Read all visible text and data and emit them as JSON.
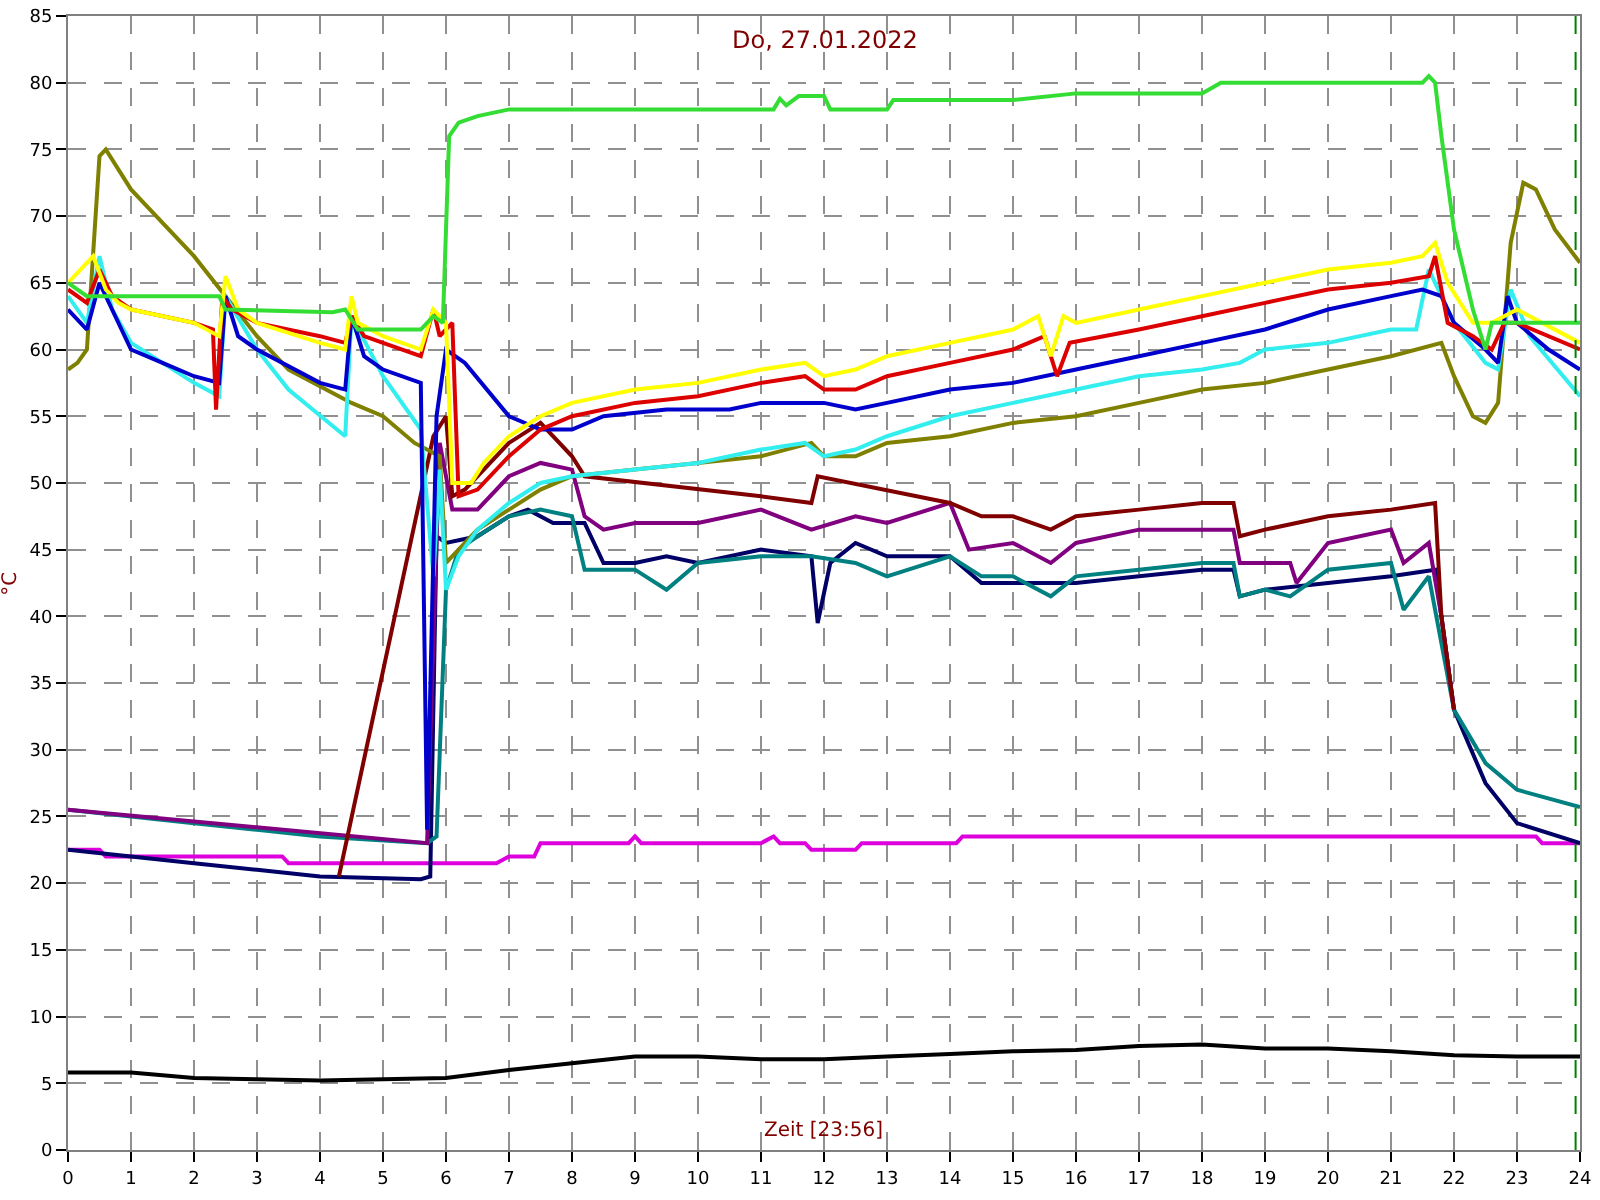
{
  "chart_data": {
    "type": "line",
    "title": "Do, 27.01.2022",
    "xlabel": "Zeit [23:56]",
    "ylabel": "°C",
    "xlim": [
      0,
      24
    ],
    "xticks": [
      0,
      1,
      2,
      3,
      4,
      5,
      6,
      7,
      8,
      9,
      10,
      11,
      12,
      13,
      14,
      15,
      16,
      17,
      18,
      19,
      20,
      21,
      22,
      23,
      24
    ],
    "ylim": [
      0,
      85
    ],
    "yticks": [
      0,
      5,
      10,
      15,
      20,
      25,
      30,
      35,
      40,
      45,
      50,
      55,
      60,
      65,
      70,
      75,
      80,
      85
    ],
    "grid": true,
    "marker": "none",
    "line_style": "solid",
    "ref_lines": [
      {
        "axis": "x",
        "value": 23.93,
        "label": null,
        "color": "#008000",
        "line_style": "dashed"
      }
    ],
    "series": [
      {
        "color": "#000000",
        "x": [
          0,
          1,
          2,
          3,
          4,
          5,
          6,
          7,
          8,
          9,
          10,
          11,
          12,
          13,
          14,
          15,
          16,
          17,
          18,
          19,
          20,
          21,
          22,
          23,
          24
        ],
        "values": [
          5.8,
          5.8,
          5.4,
          5.3,
          5.2,
          5.3,
          5.4,
          6,
          6.5,
          7,
          7,
          6.8,
          6.8,
          7,
          7.2,
          7.4,
          7.5,
          7.8,
          7.9,
          7.6,
          7.6,
          7.4,
          7.1,
          7.0,
          7.0
        ]
      },
      {
        "color": "#dd00dd",
        "x": [
          0,
          0.5,
          0.6,
          3.4,
          3.5,
          6.8,
          7,
          7.4,
          7.5,
          8.9,
          9,
          9.1,
          11,
          11.2,
          11.3,
          11.7,
          11.8,
          12.5,
          12.6,
          14.1,
          14.2,
          23.3,
          23.4,
          24
        ],
        "values": [
          22.5,
          22.5,
          22,
          22,
          21.5,
          21.5,
          22,
          22,
          23,
          23,
          23.5,
          23,
          23,
          23.5,
          23,
          23,
          22.5,
          22.5,
          23,
          23,
          23.5,
          23.5,
          23,
          23
        ]
      },
      {
        "color": "#000066",
        "x": [
          0,
          1,
          2,
          3,
          4,
          5.6,
          5.75,
          5.85,
          6,
          6.5,
          7,
          7.3,
          7.7,
          8.2,
          8.5,
          9,
          9.5,
          10,
          11,
          11.8,
          11.9,
          12.1,
          12.5,
          13,
          14,
          14.5,
          15,
          16,
          17,
          18,
          18.5,
          18.6,
          19,
          20,
          21,
          21.7,
          22,
          22.5,
          23,
          24
        ],
        "values": [
          22.5,
          22,
          21.5,
          21,
          20.5,
          20.3,
          20.5,
          46,
          45.5,
          46,
          47.5,
          48,
          47,
          47,
          44,
          44,
          44.5,
          44,
          45,
          44.5,
          39.5,
          44,
          45.5,
          44.5,
          44.5,
          42.5,
          42.5,
          42.5,
          43,
          43.5,
          43.5,
          41.5,
          42,
          42.5,
          43,
          43.5,
          33,
          27.5,
          24.5,
          23
        ]
      },
      {
        "color": "#008080",
        "x": [
          0,
          1,
          2,
          3,
          4,
          5.7,
          5.85,
          6,
          6.2,
          6.5,
          7,
          7.5,
          8,
          8.2,
          9,
          9.5,
          10,
          11,
          11.8,
          12.5,
          13,
          14,
          14.5,
          15,
          15.6,
          16,
          17,
          18,
          18.5,
          18.6,
          19,
          19.4,
          20,
          21,
          21.2,
          21.6,
          21.8,
          22,
          22.5,
          23,
          24
        ],
        "values": [
          25.5,
          25,
          24.5,
          24,
          23.5,
          23,
          23.5,
          42,
          45,
          46,
          47.5,
          48,
          47.5,
          43.5,
          43.5,
          42,
          44,
          44.5,
          44.5,
          44,
          43,
          44.5,
          43,
          43,
          41.5,
          43,
          43.5,
          44,
          44,
          41.5,
          42,
          41.5,
          43.5,
          44,
          40.5,
          43,
          38,
          33,
          29,
          27,
          25.7
        ]
      },
      {
        "color": "#800080",
        "x": [
          0,
          5.7,
          5.9,
          6.1,
          6.5,
          7,
          7.5,
          8,
          8.2,
          8.5,
          9,
          10,
          11,
          11.8,
          12.5,
          13,
          14,
          14.3,
          15,
          15.6,
          16,
          17,
          18,
          18.5,
          18.6,
          19.4,
          19.5,
          20,
          21,
          21.2,
          21.6,
          21.8,
          22
        ],
        "values": [
          25.5,
          23,
          53,
          48,
          48,
          50.5,
          51.5,
          51,
          47.5,
          46.5,
          47,
          47,
          48,
          46.5,
          47.5,
          47,
          48.5,
          45,
          45.5,
          44,
          45.5,
          46.5,
          46.5,
          46.5,
          44,
          44,
          42.5,
          45.5,
          46.5,
          44,
          45.5,
          40,
          33
        ]
      },
      {
        "color": "#800000",
        "x": [
          4.3,
          5.8,
          6,
          6.1,
          6.3,
          7,
          7.5,
          8,
          8.2,
          11,
          11.8,
          11.9,
          14,
          14.5,
          15,
          15.6,
          16,
          17,
          18,
          18.5,
          18.6,
          19,
          20,
          21,
          21.7,
          21.8,
          22
        ],
        "values": [
          20.5,
          53.5,
          55,
          49,
          49.5,
          53,
          54.5,
          52,
          50.5,
          49,
          48.5,
          50.5,
          48.5,
          47.5,
          47.5,
          46.5,
          47.5,
          48,
          48.5,
          48.5,
          46,
          46.5,
          47.5,
          48,
          48.5,
          40,
          33
        ]
      },
      {
        "color": "#808000",
        "x": [
          0,
          0.15,
          0.3,
          0.5,
          0.6,
          1,
          1.4,
          2,
          2.5,
          3,
          3.5,
          4.5,
          5,
          5.5,
          5.9,
          6,
          6.2,
          6.5,
          7,
          7.5,
          8,
          9,
          10,
          11,
          11.8,
          12,
          12.5,
          13,
          14,
          15,
          16,
          17,
          18,
          19,
          20,
          21,
          21.8,
          22,
          22.3,
          22.5,
          22.7,
          22.9,
          23.1,
          23.3,
          23.6,
          24
        ],
        "values": [
          58.5,
          59,
          60,
          74.5,
          75,
          72,
          70,
          67,
          64,
          61,
          58.5,
          56,
          55,
          53,
          52,
          44,
          45,
          46.5,
          48,
          49.5,
          50.5,
          51,
          51.5,
          52,
          53,
          52,
          52,
          53,
          53.5,
          54.5,
          55,
          56,
          57,
          57.5,
          58.5,
          59.5,
          60.5,
          58,
          55,
          54.5,
          56,
          68,
          72.5,
          72,
          69,
          66.5
        ]
      },
      {
        "color": "#33eeee",
        "x": [
          0,
          0.3,
          0.5,
          0.7,
          1,
          2,
          2.4,
          2.5,
          3,
          3.5,
          4.4,
          4.5,
          5,
          5.6,
          5.8,
          5.9,
          6,
          6.2,
          6.5,
          7,
          7.5,
          8,
          9,
          10,
          11,
          11.7,
          12,
          12.5,
          13,
          14,
          15,
          16,
          17,
          18,
          18.6,
          19,
          20,
          21,
          21.4,
          21.6,
          21.8,
          22,
          22.5,
          22.7,
          22.9,
          23.2,
          24
        ],
        "values": [
          64,
          62,
          67,
          63,
          60.5,
          57.5,
          56.5,
          64,
          60,
          57,
          53.5,
          62.5,
          58,
          54,
          43,
          51,
          42,
          44.5,
          46.5,
          48.5,
          50,
          50.5,
          51,
          51.5,
          52.5,
          53,
          52,
          52.5,
          53.5,
          55,
          56,
          57,
          58,
          58.5,
          59,
          60,
          60.5,
          61.5,
          61.5,
          66,
          64,
          62,
          59,
          58.5,
          64.5,
          61,
          56.5
        ]
      },
      {
        "color": "#0000cc",
        "x": [
          0,
          0.3,
          0.5,
          0.7,
          1,
          1.5,
          2,
          2.4,
          2.5,
          2.7,
          3,
          4,
          4.4,
          4.5,
          4.7,
          5,
          5.6,
          5.7,
          5.85,
          6,
          6.3,
          7,
          7.5,
          8,
          8.5,
          9.5,
          10.5,
          11,
          12,
          12.5,
          13,
          14,
          15,
          16,
          17,
          18,
          19,
          20,
          21,
          21.5,
          21.8,
          22,
          22.5,
          22.7,
          22.85,
          23,
          23.5,
          24
        ],
        "values": [
          63,
          61.5,
          65,
          63,
          60,
          59,
          58,
          57.5,
          64,
          61,
          60,
          57.5,
          57,
          62.5,
          59.5,
          58.5,
          57.5,
          24,
          55,
          60,
          59,
          55,
          54,
          54,
          55,
          55.5,
          55.5,
          56,
          56,
          55.5,
          56,
          57,
          57.5,
          58.5,
          59.5,
          60.5,
          61.5,
          63,
          64,
          64.5,
          64,
          62,
          60,
          59,
          64,
          62,
          60,
          58.5
        ]
      },
      {
        "color": "#dd0000",
        "x": [
          0,
          0.3,
          0.5,
          0.7,
          1,
          2,
          2.3,
          2.35,
          2.45,
          2.6,
          3,
          4,
          4.4,
          4.5,
          4.7,
          5,
          5.6,
          5.8,
          5.9,
          6.1,
          6.2,
          6.5,
          7,
          7.5,
          8,
          9,
          10,
          11,
          11.7,
          12,
          12.5,
          13,
          14,
          15,
          15.5,
          15.7,
          15.9,
          17,
          18,
          19,
          20,
          21,
          21.6,
          21.7,
          21.9,
          22.3,
          22.6,
          22.8,
          23,
          24
        ],
        "values": [
          64.5,
          63.5,
          66,
          64,
          63,
          62,
          61.5,
          55.5,
          64,
          63,
          62,
          61,
          60.5,
          62.5,
          61,
          60.5,
          59.5,
          63,
          61,
          62,
          49,
          49.5,
          52,
          54,
          55,
          56,
          56.5,
          57.5,
          58,
          57,
          57,
          58,
          59,
          60,
          61,
          58,
          60.5,
          61.5,
          62.5,
          63.5,
          64.5,
          65,
          65.5,
          67,
          62,
          61,
          60,
          62,
          62,
          60
        ]
      },
      {
        "color": "#ffff00",
        "x": [
          0,
          0.4,
          0.6,
          0.8,
          1,
          2,
          2.4,
          2.5,
          2.7,
          3,
          4,
          4.4,
          4.5,
          4.6,
          5,
          5.6,
          5.8,
          6,
          6.1,
          6.4,
          6.6,
          7,
          7.5,
          8,
          9,
          10,
          11,
          11.7,
          12,
          12.5,
          13,
          14,
          15,
          15.4,
          15.6,
          15.8,
          16,
          17,
          18,
          19,
          20,
          21,
          21.5,
          21.7,
          21.9,
          22.3,
          22.6,
          23,
          24
        ],
        "values": [
          65,
          67,
          64.5,
          63.5,
          63,
          62,
          61,
          65.5,
          63,
          62,
          60.5,
          60,
          64,
          62,
          61,
          60,
          63,
          62,
          50,
          50,
          51.5,
          53.5,
          55,
          56,
          57,
          57.5,
          58.5,
          59,
          58,
          58.5,
          59.5,
          60.5,
          61.5,
          62.5,
          59.5,
          62.5,
          62,
          63,
          64,
          65,
          66,
          66.5,
          67,
          68,
          65,
          62,
          62,
          63,
          60.5
        ]
      },
      {
        "color": "#33dd33",
        "x": [
          0,
          0.3,
          0.7,
          2.4,
          2.5,
          4.2,
          4.4,
          4.6,
          5.6,
          5.8,
          5.95,
          6.05,
          6.2,
          6.5,
          7,
          9,
          11.2,
          11.3,
          11.4,
          11.6,
          12,
          12.1,
          13,
          13.1,
          15,
          16,
          18,
          18.3,
          21.5,
          21.6,
          21.7,
          21.8,
          22,
          22.3,
          22.5,
          22.6,
          23,
          24
        ],
        "values": [
          65,
          64,
          64,
          64,
          63,
          62.8,
          63,
          61.5,
          61.5,
          62.5,
          62,
          76,
          77,
          77.5,
          78,
          78,
          78,
          78.8,
          78.3,
          79,
          79,
          78,
          78,
          78.7,
          78.7,
          79.2,
          79.2,
          80,
          80,
          80.5,
          80,
          76,
          69,
          63,
          60,
          62,
          62,
          62
        ]
      }
    ]
  }
}
